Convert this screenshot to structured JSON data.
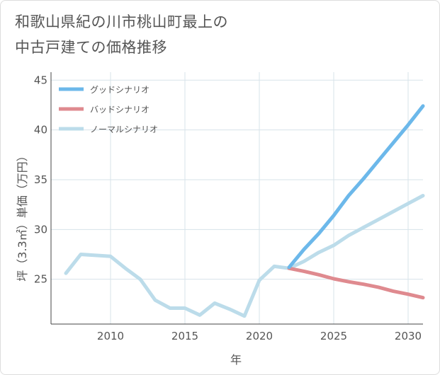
{
  "title_line1": "和歌山県紀の川市桃山町最上の",
  "title_line2": "中古戸建ての価格推移",
  "chart_data": {
    "type": "line",
    "title": "和歌山県紀の川市桃山町最上の中古戸建ての価格推移",
    "xlabel": "年",
    "ylabel": "坪（3.3㎡）単価（万円）",
    "xlim": [
      2006,
      2031
    ],
    "ylim": [
      20.5,
      45.8
    ],
    "xticks": [
      2010,
      2015,
      2020,
      2025,
      2030
    ],
    "yticks": [
      25,
      30,
      35,
      40,
      45
    ],
    "legend_position": "top-left",
    "series": [
      {
        "name": "グッドシナリオ",
        "color": "#6cb8ea",
        "x": [
          2022,
          2023,
          2024,
          2025,
          2026,
          2027,
          2028,
          2029,
          2030,
          2031
        ],
        "y": [
          26.2,
          28.0,
          29.6,
          31.4,
          33.4,
          35.1,
          36.9,
          38.7,
          40.5,
          42.4
        ]
      },
      {
        "name": "バッドシナリオ",
        "color": "#df8a8f",
        "x": [
          2022,
          2023,
          2024,
          2025,
          2026,
          2027,
          2028,
          2029,
          2030,
          2031
        ],
        "y": [
          26.1,
          25.8,
          25.45,
          25.05,
          24.75,
          24.5,
          24.2,
          23.8,
          23.5,
          23.15
        ]
      },
      {
        "name": "ノーマルシナリオ",
        "color": "#bcdcea",
        "x": [
          2007,
          2008,
          2009,
          2010,
          2011,
          2012,
          2013,
          2014,
          2015,
          2016,
          2017,
          2018,
          2019,
          2020,
          2021,
          2022,
          2023,
          2024,
          2025,
          2026,
          2027,
          2028,
          2029,
          2030,
          2031
        ],
        "y": [
          25.6,
          27.5,
          27.4,
          27.3,
          26.1,
          25.0,
          22.9,
          22.1,
          22.1,
          21.4,
          22.6,
          22.0,
          21.3,
          24.9,
          26.3,
          26.1,
          26.8,
          27.7,
          28.4,
          29.4,
          30.2,
          31.0,
          31.8,
          32.6,
          33.4
        ]
      }
    ]
  }
}
